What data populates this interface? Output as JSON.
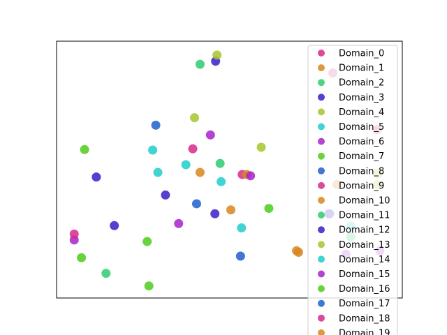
{
  "chart_data": {
    "type": "scatter",
    "title": "",
    "xlabel": "",
    "ylabel": "",
    "xlim": [
      0,
      100
    ],
    "ylim": [
      0,
      100
    ],
    "grid": false,
    "axis_ticks": false,
    "legend_placement": "top-right",
    "series": [
      {
        "name": "Domain_0",
        "color": "#d62a8a",
        "points": [
          [
            53.7,
            48.1
          ],
          [
            39.4,
            58.1
          ]
        ]
      },
      {
        "name": "Domain_1",
        "color": "#d7861f",
        "points": [
          [
            55.0,
            48.1
          ],
          [
            41.5,
            48.9
          ],
          [
            50.4,
            34.3
          ],
          [
            69.4,
            18.4
          ]
        ]
      },
      {
        "name": "Domain_2",
        "color": "#2ecb6f",
        "points": [
          [
            41.5,
            91.0
          ],
          [
            85.1,
            23.8
          ]
        ]
      },
      {
        "name": "Domain_3",
        "color": "#3b1dc9",
        "points": [
          [
            11.5,
            47.1
          ],
          [
            31.5,
            40.1
          ],
          [
            16.7,
            28.2
          ],
          [
            45.8,
            32.8
          ],
          [
            46.0,
            92.2
          ]
        ]
      },
      {
        "name": "Domain_4",
        "color": "#a6c62a",
        "points": [
          [
            46.4,
            94.6
          ],
          [
            39.9,
            70.2
          ],
          [
            59.2,
            58.7
          ],
          [
            92.8,
            44.2
          ]
        ]
      },
      {
        "name": "Domain_5",
        "color": "#1fcdcb",
        "points": [
          [
            27.8,
            57.6
          ],
          [
            29.3,
            48.9
          ],
          [
            37.4,
            51.9
          ],
          [
            47.6,
            45.3
          ],
          [
            53.5,
            27.3
          ]
        ]
      },
      {
        "name": "Domain_6",
        "color": "#a622c9",
        "points": [
          [
            44.5,
            63.5
          ],
          [
            56.1,
            47.6
          ],
          [
            35.3,
            29.0
          ],
          [
            5.1,
            22.6
          ],
          [
            83.7,
            17.1
          ]
        ]
      },
      {
        "name": "Domain_7",
        "color": "#4fcb1b",
        "points": [
          [
            8.1,
            57.8
          ],
          [
            61.4,
            34.9
          ],
          [
            26.2,
            22.0
          ],
          [
            7.2,
            15.7
          ]
        ]
      },
      {
        "name": "Domain_8",
        "color": "#1d5fcb",
        "points": [
          [
            28.7,
            67.3
          ],
          [
            40.5,
            36.7
          ],
          [
            53.2,
            16.3
          ],
          [
            79.0,
            32.8
          ]
        ]
      },
      {
        "name": "Domain_9",
        "color": "#d62a8a",
        "points": [
          [
            5.1,
            24.9
          ],
          [
            92.7,
            65.5
          ],
          [
            79.9,
            87.6
          ]
        ]
      },
      {
        "name": "Domain_10",
        "color": "#d7861f",
        "points": [
          [
            70.0,
            17.8
          ],
          [
            81.1,
            44.2
          ]
        ]
      },
      {
        "name": "Domain_11",
        "color": "#2ecb6f",
        "points": [
          [
            47.3,
            52.4
          ],
          [
            14.3,
            9.6
          ]
        ]
      },
      {
        "name": "Domain_12",
        "color": "#3b1dc9",
        "points": [
          [
            78.8,
            32.8
          ]
        ]
      },
      {
        "name": "Domain_13",
        "color": "#a6c62a",
        "points": [
          [
            92.8,
            48.5
          ]
        ]
      },
      {
        "name": "Domain_14",
        "color": "#1fcdcb",
        "points": [
          [
            85.2,
            28.0
          ]
        ]
      },
      {
        "name": "Domain_15",
        "color": "#a622c9",
        "points": [
          [
            93.5,
            18.4
          ]
        ]
      },
      {
        "name": "Domain_16",
        "color": "#4fcb1b",
        "points": [
          [
            26.7,
            4.7
          ]
        ]
      },
      {
        "name": "Domain_17",
        "color": "#1d5fcb",
        "points": []
      },
      {
        "name": "Domain_18",
        "color": "#d62a8a",
        "points": []
      },
      {
        "name": "Domain_19",
        "color": "#d7861f",
        "points": []
      }
    ]
  }
}
